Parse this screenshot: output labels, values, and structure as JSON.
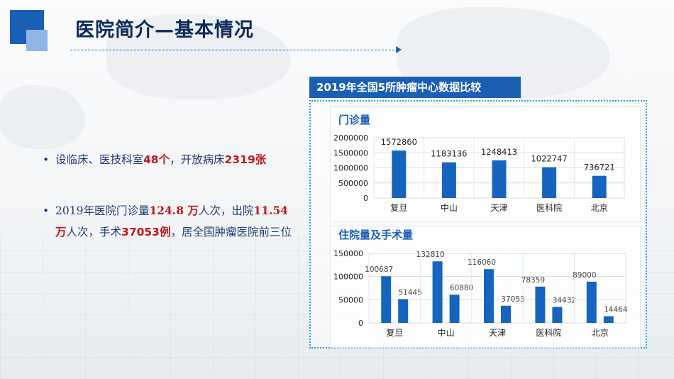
{
  "header": {
    "title": "医院简介—基本情况"
  },
  "bullets": {
    "item1": {
      "part1": "设临床、医技科室",
      "red1": "48个",
      "part2": "，开放病床",
      "red2": "2319张"
    },
    "item2": {
      "part1": "2019年医院门诊量",
      "red1": "124.8 万",
      "part2": "人次，出院",
      "red2": "11.54万",
      "part3": "人次，手术",
      "red3": "37053例",
      "part4": "，居全国肿瘤医院前三位"
    }
  },
  "chart_section": {
    "tag": "2019年全国5所肿瘤中心数据比较"
  },
  "chart_data": [
    {
      "type": "bar",
      "title": "门诊量",
      "categories": [
        "复旦",
        "中山",
        "天津",
        "医科院",
        "北京"
      ],
      "values": [
        1572860,
        1183136,
        1248413,
        1022747,
        736721
      ],
      "yticks": [
        "2000000",
        "1500000",
        "1000000",
        "500000",
        "0"
      ],
      "ylim": [
        0,
        2000000
      ],
      "grid": true,
      "color": "#1565c0"
    },
    {
      "type": "bar",
      "title": "住院量及手术量",
      "categories": [
        "复旦",
        "中山",
        "天津",
        "医科院",
        "北京"
      ],
      "series": [
        {
          "values": [
            100687,
            132810,
            116060,
            78359,
            89000
          ]
        },
        {
          "values": [
            51445,
            60880,
            37053,
            34432,
            14464
          ]
        }
      ],
      "yticks": [
        "150000",
        "100000",
        "50000",
        "0"
      ],
      "ylim": [
        0,
        150000
      ],
      "grid": true,
      "color": "#1565c0"
    }
  ]
}
